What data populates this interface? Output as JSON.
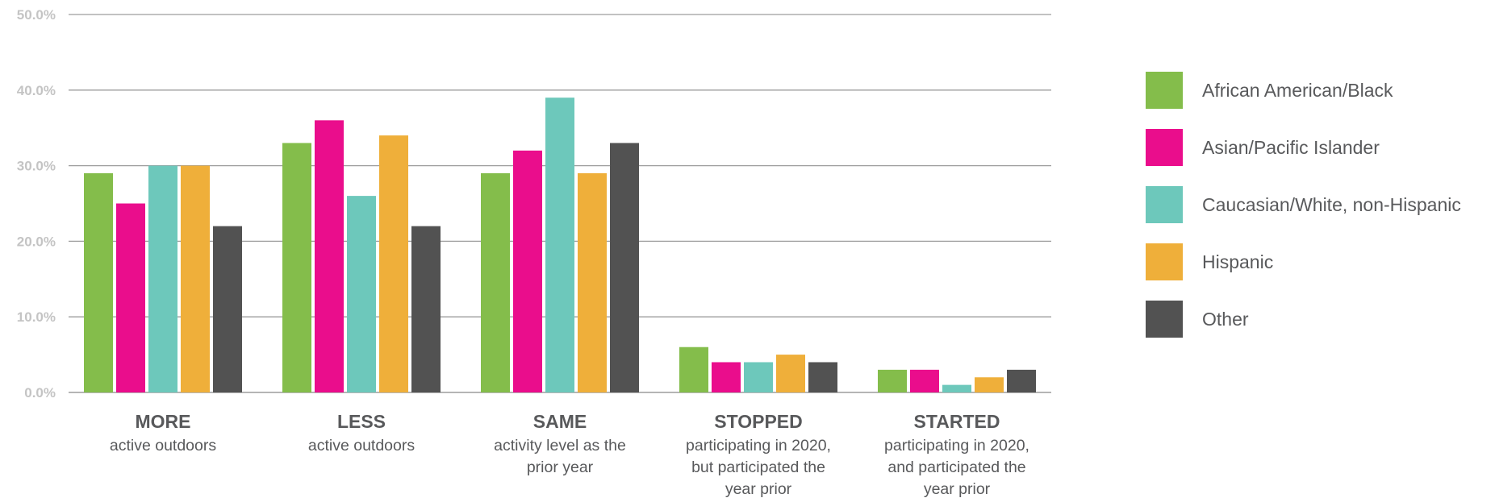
{
  "chart_data": {
    "type": "bar",
    "categories": [
      {
        "title": "MORE",
        "subtitle": [
          "active outdoors"
        ]
      },
      {
        "title": "LESS",
        "subtitle": [
          "active outdoors"
        ]
      },
      {
        "title": "SAME",
        "subtitle": [
          "activity level as the",
          "prior year"
        ]
      },
      {
        "title": "STOPPED",
        "subtitle": [
          "participating in 2020,",
          "but participated the",
          "year prior"
        ]
      },
      {
        "title": "STARTED",
        "subtitle": [
          "participating in 2020,",
          "and participated the",
          "year prior"
        ]
      }
    ],
    "series": [
      {
        "name": "African American/Black",
        "color": "#84bd4b",
        "values": [
          29,
          33,
          29,
          6,
          3
        ]
      },
      {
        "name": "Asian/Pacific Islander",
        "color": "#ea0d8c",
        "values": [
          25,
          36,
          32,
          4,
          3
        ]
      },
      {
        "name": "Caucasian/White, non-Hispanic",
        "color": "#6dc8bb",
        "values": [
          30,
          26,
          39,
          4,
          1
        ]
      },
      {
        "name": "Hispanic",
        "color": "#efaf3a",
        "values": [
          30,
          34,
          29,
          5,
          2
        ]
      },
      {
        "name": "Other",
        "color": "#525252",
        "values": [
          22,
          22,
          33,
          4,
          3
        ]
      }
    ],
    "yticks": [
      "0.0%",
      "10.0%",
      "20.0%",
      "30.0%",
      "40.0%",
      "50.0%"
    ],
    "ylim": [
      0,
      50
    ],
    "unit": "%",
    "grid": true,
    "legend_position": "right"
  }
}
